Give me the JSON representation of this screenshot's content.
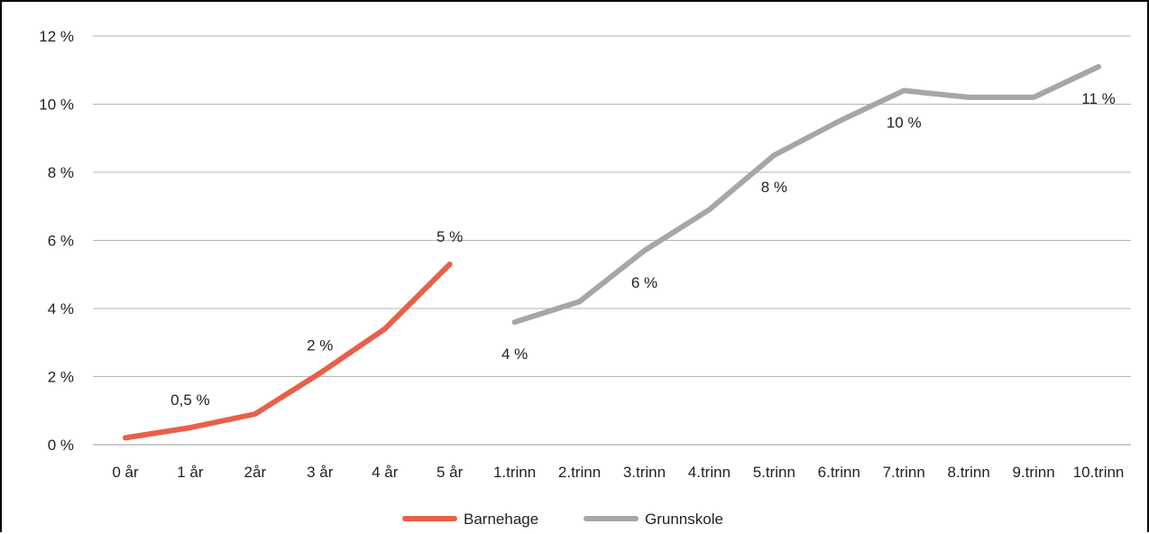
{
  "chart_data": {
    "type": "line",
    "categories": [
      "0 år",
      "1 år",
      "2år",
      "3 år",
      "4 år",
      "5 år",
      "1.trinn",
      "2.trinn",
      "3.trinn",
      "4.trinn",
      "5.trinn",
      "6.trinn",
      "7.trinn",
      "8.trinn",
      "9.trinn",
      "10.trinn"
    ],
    "ylim": [
      0,
      12
    ],
    "yticks": [
      0,
      2,
      4,
      6,
      8,
      10,
      12
    ],
    "ytick_labels": [
      "0 %",
      "2 %",
      "4 %",
      "6 %",
      "8 %",
      "10 %",
      "12 %"
    ],
    "grid": true,
    "legend_position": "bottom",
    "series": [
      {
        "name": "Barnehage",
        "color": "#e8604a",
        "values": [
          0.2,
          0.5,
          0.9,
          2.1,
          3.4,
          5.3,
          null,
          null,
          null,
          null,
          null,
          null,
          null,
          null,
          null,
          null
        ],
        "data_labels": [
          {
            "index": 1,
            "text": "0,5 %"
          },
          {
            "index": 3,
            "text": "2 %"
          },
          {
            "index": 5,
            "text": "5 %"
          }
        ]
      },
      {
        "name": "Grunnskole",
        "color": "#a6a6a6",
        "values": [
          null,
          null,
          null,
          null,
          null,
          null,
          3.6,
          4.2,
          5.7,
          6.9,
          8.5,
          9.5,
          10.4,
          10.2,
          10.2,
          11.1
        ],
        "data_labels": [
          {
            "index": 6,
            "text": "4 %"
          },
          {
            "index": 8,
            "text": "6 %"
          },
          {
            "index": 10,
            "text": "8 %"
          },
          {
            "index": 12,
            "text": "10 %"
          },
          {
            "index": 15,
            "text": "11 %"
          }
        ]
      }
    ]
  }
}
